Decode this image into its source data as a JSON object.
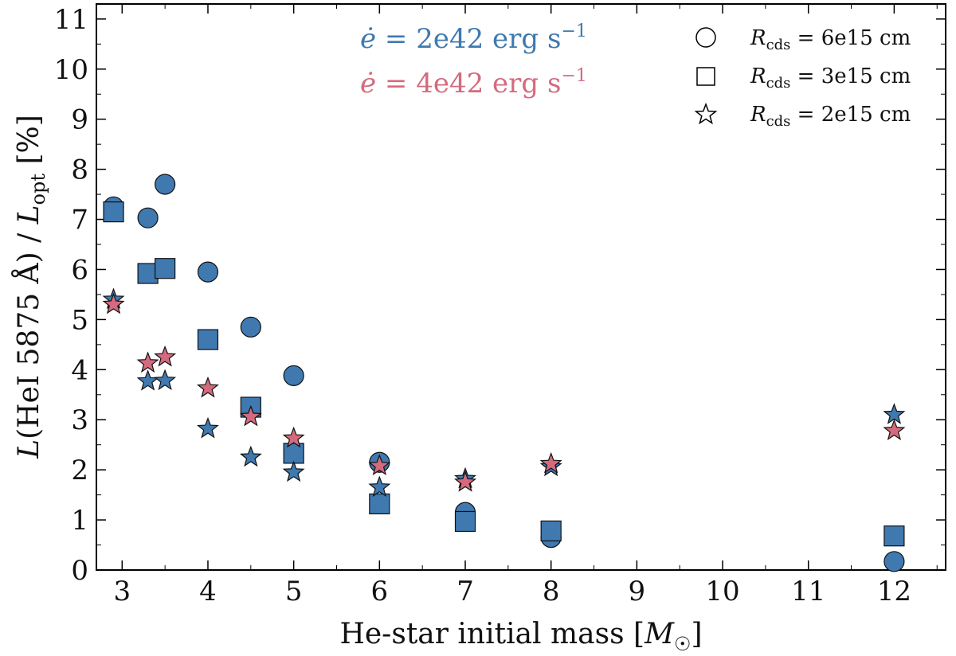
{
  "chart_data": {
    "type": "scatter",
    "xlabel": "He-star initial mass [M☉]",
    "ylabel": "L(HeI 5875 Å) / L_opt [%]",
    "xlim": [
      2.7,
      12.6
    ],
    "ylim": [
      0,
      11.3
    ],
    "x_ticks": [
      "3",
      "4",
      "5",
      "6",
      "7",
      "8",
      "9",
      "10",
      "11",
      "12"
    ],
    "y_ticks": [
      "0",
      "1",
      "2",
      "3",
      "4",
      "5",
      "6",
      "7",
      "8",
      "9",
      "10",
      "11"
    ],
    "grid": false,
    "annotations": [
      {
        "text": "ė = 2e42 erg s⁻¹",
        "color": "#3f79b0"
      },
      {
        "text": "ė = 4e42 erg s⁻¹",
        "color": "#d46a7e"
      }
    ],
    "legend": {
      "position": "top-right",
      "entries": [
        {
          "marker": "circle",
          "label": "R_cds = 6e15 cm"
        },
        {
          "marker": "square",
          "label": "R_cds = 3e15 cm"
        },
        {
          "marker": "star",
          "label": "R_cds = 2e15 cm"
        }
      ]
    },
    "series": [
      {
        "name": "ė = 2e42, R_cds = 6e15 cm",
        "marker": "circle",
        "color": "#3f79b0",
        "x": [
          2.9,
          3.3,
          3.5,
          4.0,
          4.5,
          5.0,
          6.0,
          7.0,
          8.0,
          12.0
        ],
        "y": [
          7.25,
          7.03,
          7.7,
          5.95,
          4.85,
          3.88,
          2.15,
          1.15,
          0.65,
          0.17
        ]
      },
      {
        "name": "ė = 2e42, R_cds = 3e15 cm",
        "marker": "square",
        "color": "#3f79b0",
        "x": [
          2.9,
          3.3,
          3.5,
          4.0,
          4.5,
          5.0,
          6.0,
          7.0,
          8.0,
          12.0
        ],
        "y": [
          7.15,
          5.92,
          6.02,
          4.6,
          3.25,
          2.33,
          1.32,
          0.97,
          0.78,
          0.68
        ]
      },
      {
        "name": "ė = 2e42, R_cds = 2e15 cm",
        "marker": "star",
        "color": "#3f79b0",
        "x": [
          2.9,
          3.3,
          3.5,
          4.0,
          4.5,
          5.0,
          6.0,
          7.0,
          8.0,
          12.0
        ],
        "y": [
          5.4,
          3.77,
          3.78,
          2.82,
          2.25,
          1.95,
          1.65,
          1.82,
          2.06,
          3.1
        ]
      },
      {
        "name": "ė = 4e42, R_cds = 2e15 cm",
        "marker": "star",
        "color": "#d46a7e",
        "x": [
          2.9,
          3.3,
          3.5,
          4.0,
          4.5,
          5.0,
          6.0,
          7.0,
          8.0,
          12.0
        ],
        "y": [
          5.3,
          4.13,
          4.25,
          3.63,
          3.06,
          2.63,
          2.08,
          1.75,
          2.12,
          2.78
        ]
      }
    ]
  }
}
